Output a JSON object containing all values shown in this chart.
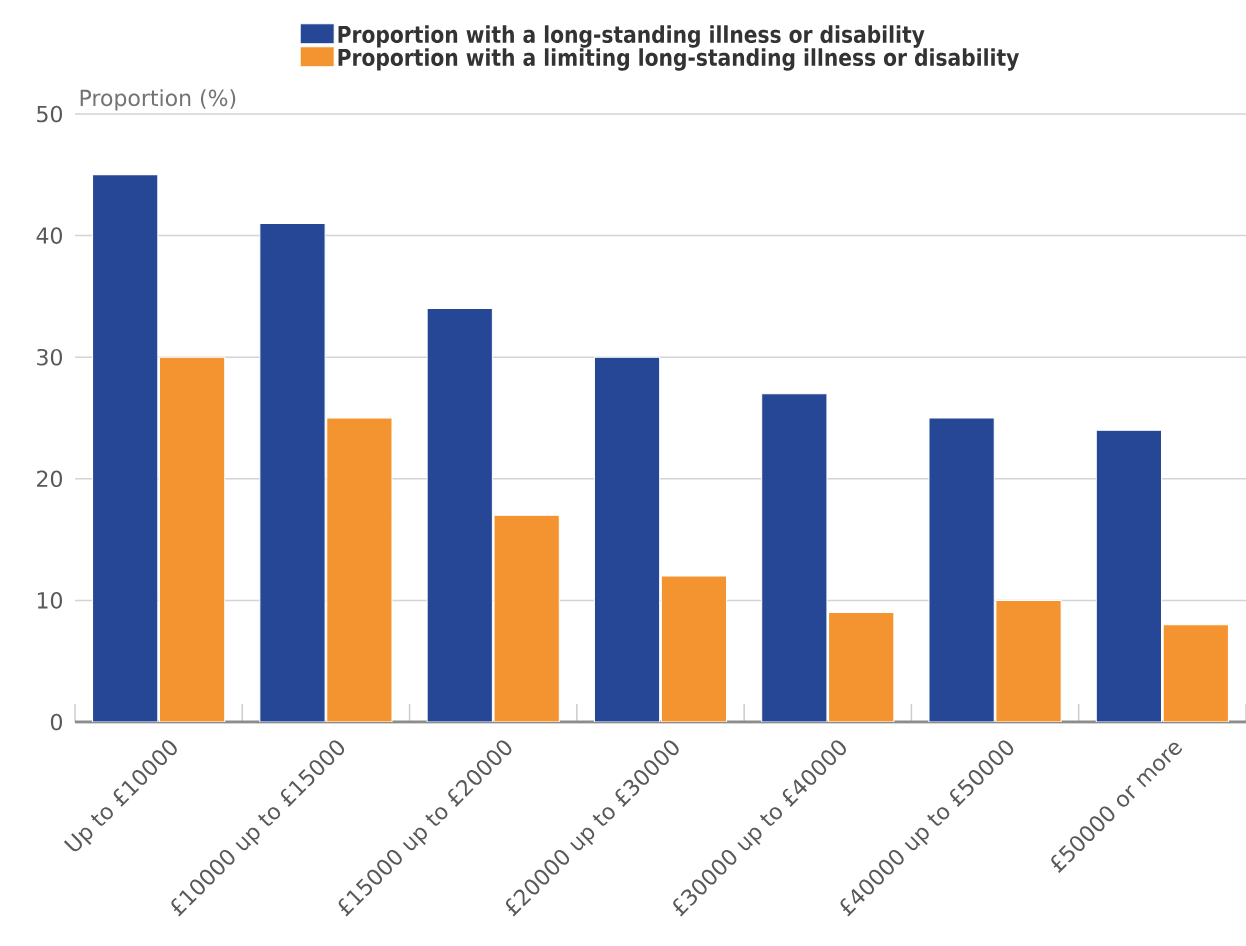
{
  "chart_data": {
    "type": "bar",
    "categories": [
      "Up to £10000",
      "£10000 up to £15000",
      "£15000 up to £20000",
      "£20000 up to £30000",
      "£30000 up to £40000",
      "£40000 up to £50000",
      "£50000 or more"
    ],
    "series": [
      {
        "name": "Proportion with a long-standing illness or disability",
        "color": "#264796",
        "values": [
          45,
          41,
          34,
          30,
          27,
          25,
          24
        ]
      },
      {
        "name": "Proportion with a limiting long-standing illness or disability",
        "color": "#f49431",
        "values": [
          30,
          25,
          17,
          12,
          9,
          10,
          8
        ]
      }
    ],
    "ylabel": "Proportion (%)",
    "ylim": [
      0,
      50
    ],
    "yticks": [
      0,
      10,
      20,
      30,
      40,
      50
    ],
    "grid": "y",
    "legend": "top"
  }
}
